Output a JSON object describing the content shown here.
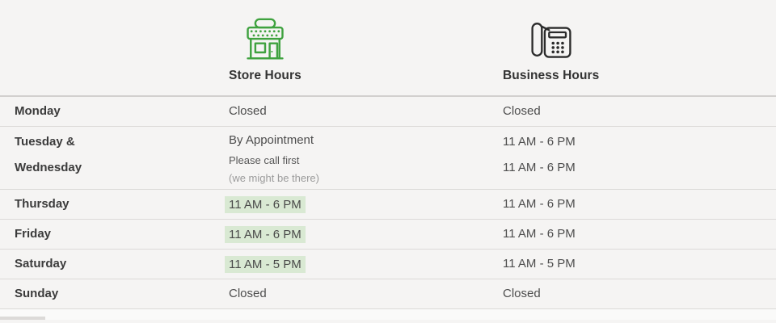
{
  "columns": {
    "store": {
      "label": "Store Hours",
      "icon": "storefront-icon",
      "icon_color": "#3fa23f"
    },
    "business": {
      "label": "Business Hours",
      "icon": "phone-icon",
      "icon_color": "#2b2b2b"
    }
  },
  "rows": [
    {
      "day_lines": [
        "Monday"
      ],
      "store_lines": [
        {
          "text": "Closed"
        }
      ],
      "business_lines": [
        "Closed"
      ]
    },
    {
      "day_lines": [
        "Tuesday &",
        "Wednesday"
      ],
      "store_lines": [
        {
          "text": "By Appointment"
        },
        {
          "text": "Please call first",
          "style": "small"
        },
        {
          "text": "(we might be there)",
          "style": "muted"
        }
      ],
      "business_lines": [
        "11 AM - 6 PM",
        "11 AM - 6 PM"
      ]
    },
    {
      "day_lines": [
        "Thursday"
      ],
      "store_lines": [
        {
          "text": "11 AM - 6 PM",
          "highlight": true
        }
      ],
      "business_lines": [
        "11 AM - 6 PM"
      ]
    },
    {
      "day_lines": [
        "Friday"
      ],
      "store_lines": [
        {
          "text": "11 AM - 6 PM",
          "highlight": true
        }
      ],
      "business_lines": [
        "11 AM - 6 PM"
      ]
    },
    {
      "day_lines": [
        "Saturday"
      ],
      "store_lines": [
        {
          "text": "11 AM - 5 PM",
          "highlight": true
        }
      ],
      "business_lines": [
        "11 AM - 5 PM"
      ]
    },
    {
      "day_lines": [
        "Sunday"
      ],
      "store_lines": [
        {
          "text": "Closed"
        }
      ],
      "business_lines": [
        "Closed"
      ]
    }
  ],
  "colors": {
    "background": "#f5f4f3",
    "highlight_green": "#d9e9d3",
    "accent_green": "#3fa23f",
    "icon_dark": "#2b2b2b",
    "text_dark": "#3b3b3b",
    "text_body": "#4d4d4d",
    "text_muted": "#9b9b9b",
    "divider": "#dcdad8"
  }
}
